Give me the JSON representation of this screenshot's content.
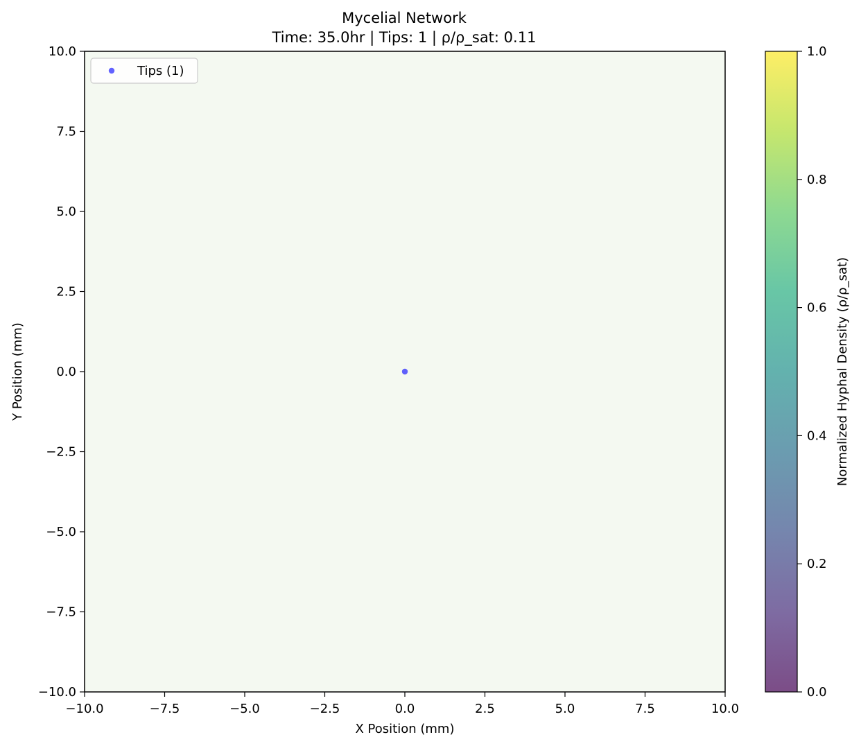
{
  "chart_data": {
    "type": "scatter",
    "title": "Mycelial Network",
    "subtitle": "Time: 35.0hr | Tips: 1 | ρ/ρ_sat: 0.11",
    "xlabel": "X Position (mm)",
    "ylabel": "Y Position (mm)",
    "xlim": [
      -10,
      10
    ],
    "ylim": [
      -10,
      10
    ],
    "xticks": [
      -10,
      -7.5,
      -5,
      -2.5,
      0,
      2.5,
      5,
      7.5,
      10
    ],
    "yticks": [
      -10,
      -7.5,
      -5,
      -2.5,
      0,
      2.5,
      5,
      7.5,
      10
    ],
    "grid": false,
    "legend_position": "top-left",
    "plot_background": "#f4f9f1",
    "series": [
      {
        "name": "Tips (1)",
        "color": "#1f1fff",
        "points": [
          {
            "x": 0.0,
            "y": 0.0
          }
        ]
      }
    ],
    "colorbar": {
      "label": "Normalized Hyphal Density (ρ/ρ_sat)",
      "range": [
        0,
        1
      ],
      "ticks": [
        0,
        0.2,
        0.4,
        0.6,
        0.8,
        1
      ],
      "colormap": "viridis",
      "alpha": 0.7
    }
  }
}
